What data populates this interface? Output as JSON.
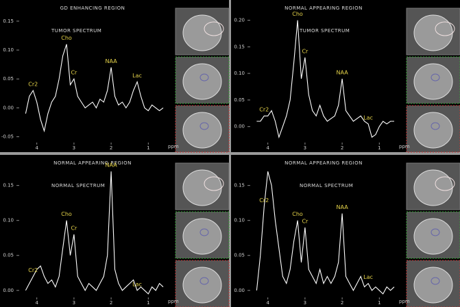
{
  "chart_data": [
    {
      "type": "line",
      "title": "GD ENHANCING REGION",
      "annotation": "TUMOR SPECTRUM",
      "x_label": "ppm",
      "peak_labels": [
        "Cr2",
        "Cho",
        "Cr",
        "NAA",
        "Lac"
      ],
      "x": [
        4.3,
        4.2,
        4.1,
        4.0,
        3.9,
        3.8,
        3.7,
        3.6,
        3.5,
        3.4,
        3.3,
        3.2,
        3.1,
        3.0,
        2.9,
        2.8,
        2.7,
        2.6,
        2.5,
        2.4,
        2.3,
        2.2,
        2.1,
        2.0,
        1.9,
        1.8,
        1.7,
        1.6,
        1.5,
        1.4,
        1.3,
        1.2,
        1.1,
        1.0,
        0.9,
        0.8,
        0.7,
        0.6
      ],
      "series": [
        {
          "color": "#ffffff",
          "values": [
            -0.01,
            0.02,
            0.03,
            0.01,
            -0.02,
            -0.04,
            -0.01,
            0.01,
            0.02,
            0.05,
            0.09,
            0.11,
            0.04,
            0.05,
            0.02,
            0.01,
            0.0,
            0.005,
            0.01,
            0.0,
            0.015,
            0.01,
            0.03,
            0.07,
            0.02,
            0.005,
            0.01,
            0.0,
            0.01,
            0.03,
            0.045,
            0.02,
            0.0,
            -0.005,
            0.005,
            0.0,
            -0.005,
            0.0
          ]
        }
      ],
      "xlim": [
        4.4,
        0.6
      ],
      "xticks": [
        4,
        3,
        2,
        1
      ],
      "ylim": [
        -0.06,
        0.17
      ],
      "yticks": [
        0.15,
        {
          "value": 0.1,
          "label": "0.10"
        },
        0.05,
        {
          "value": 0,
          "label": "0.00"
        },
        -0.05
      ]
    },
    {
      "type": "line",
      "title": "NORMAL APPEARING REGION",
      "annotation": "TUMOR SPECTRUM",
      "x_label": "ppm",
      "peak_labels": [
        "Cr2",
        "Cho",
        "Cr",
        "NAA",
        "Lac"
      ],
      "x": [
        4.3,
        4.2,
        4.1,
        4.0,
        3.9,
        3.8,
        3.7,
        3.6,
        3.5,
        3.4,
        3.3,
        3.2,
        3.1,
        3.0,
        2.9,
        2.8,
        2.7,
        2.6,
        2.5,
        2.4,
        2.3,
        2.2,
        2.1,
        2.0,
        1.9,
        1.8,
        1.7,
        1.6,
        1.5,
        1.4,
        1.3,
        1.2,
        1.1,
        1.0,
        0.9,
        0.8,
        0.7,
        0.6
      ],
      "series": [
        {
          "color": "#ffffff",
          "values": [
            0.01,
            0.01,
            0.02,
            0.02,
            0.03,
            0.01,
            -0.02,
            0.0,
            0.02,
            0.05,
            0.12,
            0.2,
            0.09,
            0.13,
            0.06,
            0.03,
            0.02,
            0.04,
            0.02,
            0.01,
            0.015,
            0.02,
            0.04,
            0.09,
            0.03,
            0.02,
            0.01,
            0.015,
            0.02,
            0.01,
            0.005,
            -0.02,
            -0.015,
            0.0,
            0.01,
            0.005,
            0.01,
            0.01
          ]
        }
      ],
      "xlim": [
        4.4,
        0.6
      ],
      "xticks": [
        4,
        3,
        2,
        1
      ],
      "ylim": [
        -0.03,
        0.22
      ],
      "yticks": [
        {
          "value": 0.2,
          "label": "0.20"
        },
        0.15,
        {
          "value": 0.1,
          "label": "0.10"
        },
        0.05,
        {
          "value": 0,
          "label": "0.00"
        }
      ]
    },
    {
      "type": "line",
      "title": "NORMAL APPEARING REGION",
      "annotation": "NORMAL SPECTRUM",
      "x_label": "ppm",
      "peak_labels": [
        "Cr2",
        "Cho",
        "Cr",
        "NAA",
        "Lac"
      ],
      "x": [
        4.3,
        4.2,
        4.1,
        4.0,
        3.9,
        3.8,
        3.7,
        3.6,
        3.5,
        3.4,
        3.3,
        3.2,
        3.1,
        3.0,
        2.9,
        2.8,
        2.7,
        2.6,
        2.5,
        2.4,
        2.3,
        2.2,
        2.1,
        2.0,
        1.9,
        1.8,
        1.7,
        1.6,
        1.5,
        1.4,
        1.3,
        1.2,
        1.1,
        1.0,
        0.9,
        0.8,
        0.7,
        0.6
      ],
      "series": [
        {
          "color": "#ffffff",
          "values": [
            0.0,
            0.01,
            0.02,
            0.03,
            0.035,
            0.02,
            0.01,
            0.015,
            0.005,
            0.02,
            0.06,
            0.1,
            0.05,
            0.08,
            0.02,
            0.01,
            0.0,
            0.01,
            0.005,
            0.0,
            0.01,
            0.02,
            0.05,
            0.17,
            0.03,
            0.01,
            0.0,
            0.005,
            0.01,
            0.015,
            0.0,
            0.005,
            0.0,
            -0.005,
            0.005,
            0.0,
            0.01,
            0.005
          ]
        }
      ],
      "xlim": [
        4.4,
        0.6
      ],
      "xticks": [
        4,
        3,
        2,
        1
      ],
      "ylim": [
        -0.01,
        0.18
      ],
      "yticks": [
        0.15,
        {
          "value": 0.1,
          "label": "0.10"
        },
        0.05,
        {
          "value": 0,
          "label": "0.00"
        }
      ]
    },
    {
      "type": "line",
      "title": "NORMAL APPEARING REGION",
      "annotation": "NORMAL SPECTRUM",
      "x_label": "ppm",
      "peak_labels": [
        "Cr2",
        "Cho",
        "Cr",
        "NAA",
        "Lac"
      ],
      "x": [
        4.3,
        4.2,
        4.1,
        4.0,
        3.9,
        3.8,
        3.7,
        3.6,
        3.5,
        3.4,
        3.3,
        3.2,
        3.1,
        3.0,
        2.9,
        2.8,
        2.7,
        2.6,
        2.5,
        2.4,
        2.3,
        2.2,
        2.1,
        2.0,
        1.9,
        1.8,
        1.7,
        1.6,
        1.5,
        1.4,
        1.3,
        1.2,
        1.1,
        1.0,
        0.9,
        0.8,
        0.7,
        0.6
      ],
      "series": [
        {
          "color": "#ffffff",
          "values": [
            0.0,
            0.05,
            0.12,
            0.17,
            0.15,
            0.1,
            0.06,
            0.02,
            0.01,
            0.03,
            0.07,
            0.1,
            0.04,
            0.09,
            0.03,
            0.02,
            0.01,
            0.03,
            0.01,
            0.02,
            0.01,
            0.02,
            0.04,
            0.11,
            0.02,
            0.01,
            0.0,
            0.01,
            0.02,
            0.005,
            0.01,
            0.0,
            0.005,
            0.0,
            -0.005,
            0.005,
            0.0,
            0.005
          ]
        }
      ],
      "xlim": [
        4.4,
        0.6
      ],
      "xticks": [
        4,
        3,
        2,
        1
      ],
      "ylim": [
        -0.01,
        0.18
      ],
      "yticks": [
        0.15,
        {
          "value": 0.1,
          "label": "0.10"
        },
        0.05,
        {
          "value": 0,
          "label": "0.00"
        }
      ]
    }
  ]
}
